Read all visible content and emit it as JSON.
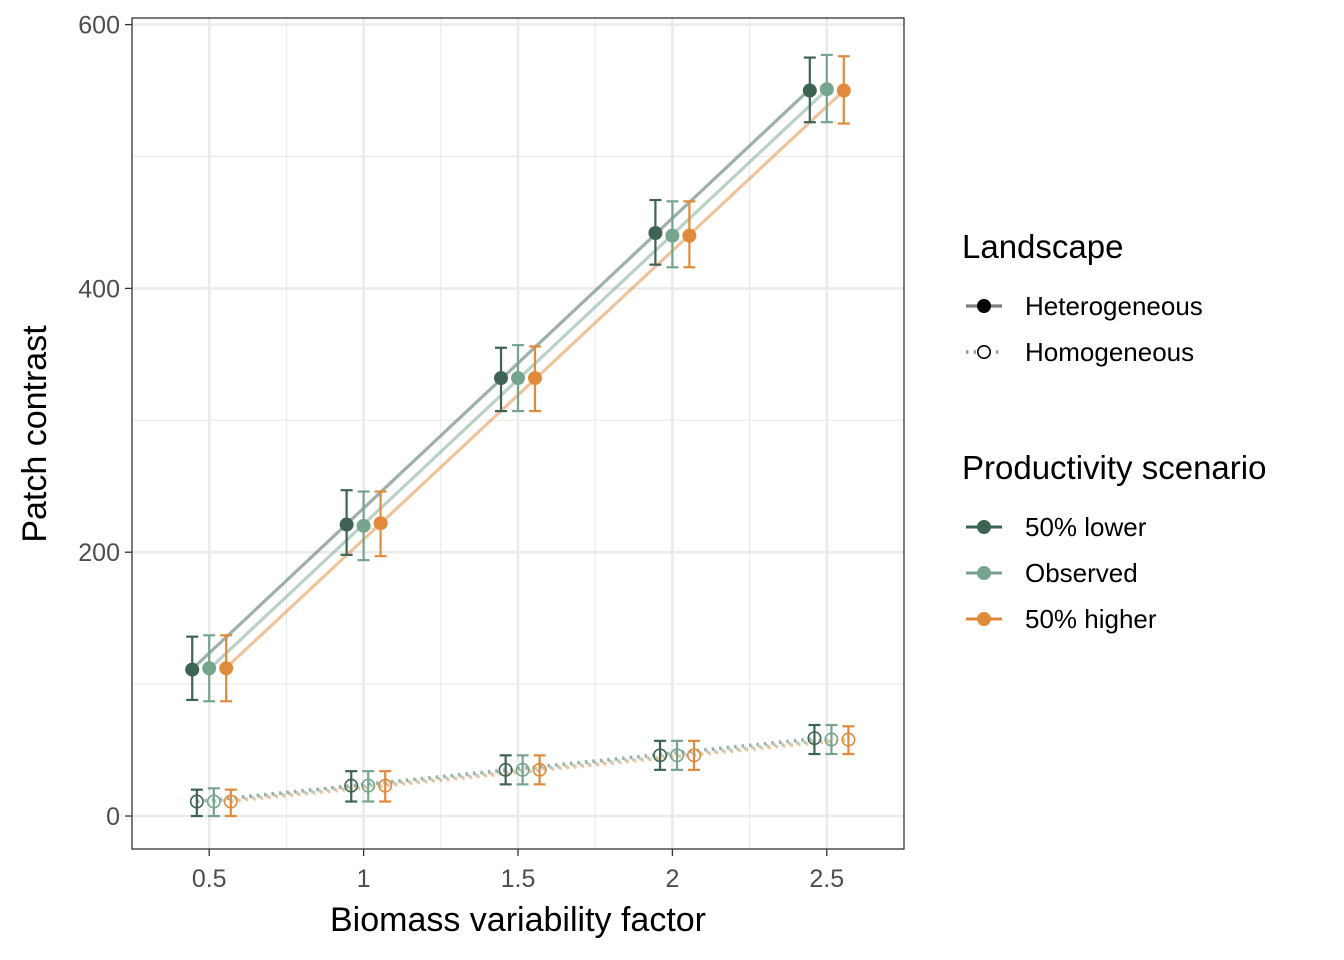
{
  "chart_data": {
    "type": "line",
    "xlabel": "Biomass variability factor",
    "ylabel": "Patch contrast",
    "x": [
      0.5,
      1,
      1.5,
      2,
      2.5
    ],
    "x_tick_labels": [
      "0.5",
      "1",
      "1.5",
      "2",
      "2.5"
    ],
    "xlim": [
      0.25,
      2.75
    ],
    "ylim": [
      -25,
      605
    ],
    "y_ticks": [
      0,
      200,
      400,
      600
    ],
    "y_tick_labels": [
      "0",
      "200",
      "400",
      "600"
    ],
    "grid": true,
    "legend_position": "right",
    "colors": {
      "50% lower": "#3e6352",
      "Observed": "#76a58d",
      "50% higher": "#e08a3c"
    },
    "legends": [
      {
        "title": "Landscape",
        "entries": [
          {
            "label": "Heterogeneous",
            "line": "solid",
            "marker": "filled"
          },
          {
            "label": "Homogeneous",
            "line": "dotted",
            "marker": "open"
          }
        ]
      },
      {
        "title": "Productivity scenario",
        "entries": [
          {
            "label": "50% lower"
          },
          {
            "label": "Observed"
          },
          {
            "label": "50% higher"
          }
        ]
      }
    ],
    "series": [
      {
        "landscape": "Heterogeneous",
        "scenario": "50% lower",
        "offset": -0.055,
        "values": [
          111,
          221,
          332,
          442,
          550
        ],
        "lower": [
          88,
          198,
          307,
          418,
          526
        ],
        "upper": [
          136,
          247,
          355,
          467,
          575
        ]
      },
      {
        "landscape": "Heterogeneous",
        "scenario": "Observed",
        "offset": 0,
        "values": [
          112,
          220,
          332,
          440,
          551
        ],
        "lower": [
          87,
          194,
          307,
          416,
          526
        ],
        "upper": [
          137,
          246,
          357,
          466,
          577
        ]
      },
      {
        "landscape": "Heterogeneous",
        "scenario": "50% higher",
        "offset": 0.055,
        "values": [
          112,
          222,
          332,
          440,
          550
        ],
        "lower": [
          87,
          197,
          307,
          416,
          525
        ],
        "upper": [
          137,
          246,
          356,
          466,
          576
        ]
      },
      {
        "landscape": "Homogeneous",
        "scenario": "50% lower",
        "offset": -0.04,
        "values": [
          11,
          23,
          35,
          46,
          59
        ],
        "lower": [
          0,
          11,
          24,
          35,
          47
        ],
        "upper": [
          20,
          34,
          46,
          57,
          69
        ]
      },
      {
        "landscape": "Homogeneous",
        "scenario": "Observed",
        "offset": 0.015,
        "values": [
          11,
          23,
          35,
          46,
          58
        ],
        "lower": [
          0,
          11,
          24,
          35,
          47
        ],
        "upper": [
          21,
          34,
          46,
          57,
          69
        ]
      },
      {
        "landscape": "Homogeneous",
        "scenario": "50% higher",
        "offset": 0.07,
        "values": [
          11,
          23,
          35,
          46,
          58
        ],
        "lower": [
          0,
          11,
          24,
          35,
          47
        ],
        "upper": [
          20,
          34,
          46,
          57,
          68
        ]
      }
    ]
  }
}
